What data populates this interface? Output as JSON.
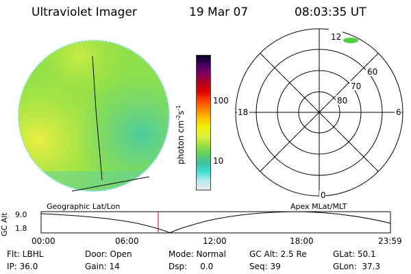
{
  "header": {
    "title": "Ultraviolet Imager",
    "date": "19 Mar 07",
    "time": "08:03:35 UT"
  },
  "colorbar": {
    "unit": "photon cm",
    "exp1": "-2",
    "mid": "s",
    "exp2": "-1",
    "tick_100": "100",
    "tick_10": "10",
    "colors": [
      "#e8e8e8",
      "#b8e8f0",
      "#40e0d0",
      "#40c0a0",
      "#60d060",
      "#a0e040",
      "#e0f040",
      "#f0f000",
      "#ffc000",
      "#ff8000",
      "#ff4000",
      "#e00000",
      "#b00020",
      "#800060",
      "#400060",
      "#000020"
    ]
  },
  "polar": {
    "label_12": "12",
    "label_18": "18",
    "label_6": "6",
    "label_0": "0",
    "label_60": "60",
    "label_70": "70",
    "label_80": "80"
  },
  "timeline": {
    "left_label": "Geographic Lat/Lon",
    "right_label": "Apex MLat/MLT",
    "ylabel": "GC Alt",
    "ymax": "9.0",
    "ymin": "1.8",
    "ticks": [
      "00:00",
      "06:00",
      "12:00",
      "18:00",
      "23:59"
    ]
  },
  "status": {
    "flt": "Flt: LBHL",
    "door": "Door: Open",
    "mode": "Mode: Normal",
    "gc_alt": "GC Alt: 2.5 Re",
    "glat": "GLat: 50.1",
    "ip": "IP: 36.0",
    "gain": "Gain: 14",
    "dsp": "Dsp:     0.0",
    "seq": "Seq: 39",
    "glon": "GLon:  37.3"
  },
  "colors": {
    "disk_main": "#8ee04a",
    "disk_yellow": "#e8f040",
    "disk_teal": "#50d0a0",
    "cursor": "#c00000"
  }
}
